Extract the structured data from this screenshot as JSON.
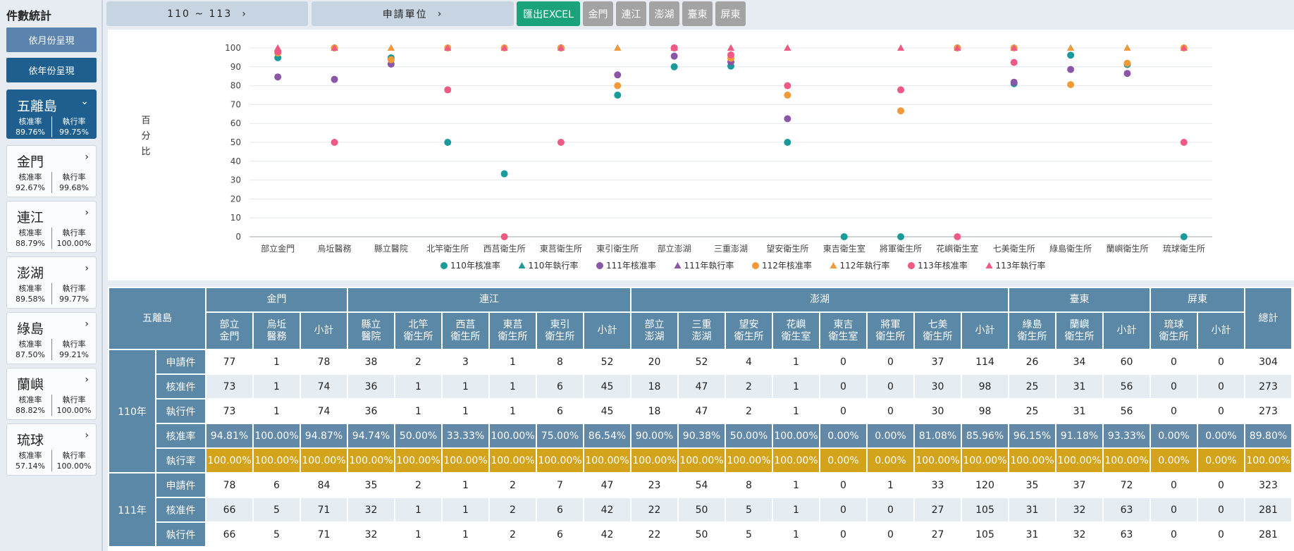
{
  "sidebar": {
    "title": "件數統計",
    "by_month": "依月份呈現",
    "by_year": "依年份呈現",
    "cards": [
      {
        "name": "五離島",
        "label1": "核准率",
        "value1": "89.76%",
        "label2": "執行率",
        "value2": "99.75%",
        "active": true,
        "chev": "⌄"
      },
      {
        "name": "金門",
        "label1": "核准率",
        "value1": "92.67%",
        "label2": "執行率",
        "value2": "99.68%",
        "chev": "›"
      },
      {
        "name": "連江",
        "label1": "核准率",
        "value1": "88.79%",
        "label2": "執行率",
        "value2": "100.00%",
        "chev": "›"
      },
      {
        "name": "澎湖",
        "label1": "核准率",
        "value1": "89.58%",
        "label2": "執行率",
        "value2": "99.77%",
        "chev": "›"
      },
      {
        "name": "綠島",
        "label1": "核准率",
        "value1": "87.50%",
        "label2": "執行率",
        "value2": "99.21%",
        "chev": "›"
      },
      {
        "name": "蘭嶼",
        "label1": "核准率",
        "value1": "88.82%",
        "label2": "執行率",
        "value2": "100.00%",
        "chev": "›"
      },
      {
        "name": "琉球",
        "label1": "核准率",
        "value1": "57.14%",
        "label2": "執行率",
        "value2": "100.00%",
        "chev": "›"
      }
    ]
  },
  "toolbar": {
    "year_range": "110 ~ 113",
    "year_chev": "›",
    "unit": "申請單位",
    "unit_chev": "›",
    "export": "匯出EXCEL",
    "filters": [
      "金門",
      "連江",
      "澎湖",
      "臺東",
      "屏東"
    ],
    "export_color": "#1aa37a",
    "filter_color": "#a3a3a3"
  },
  "chart_data": {
    "type": "scatter",
    "ylabel": "百分比",
    "ylim": [
      0,
      100
    ],
    "yticks": [
      0,
      10,
      20,
      30,
      40,
      50,
      60,
      70,
      80,
      90,
      100
    ],
    "grid": true,
    "legend_position": "bottom",
    "categories": [
      "部立金門",
      "烏坵醫務",
      "縣立醫院",
      "北竿衛生所",
      "西莒衛生所",
      "東莒衛生所",
      "東引衛生所",
      "部立澎湖",
      "三重澎湖",
      "望安衛生所",
      "東吉衛生室",
      "將軍衛生所",
      "花嶼衛生室",
      "七美衛生所",
      "綠島衛生所",
      "蘭嶼衛生所",
      "琉球衛生所"
    ],
    "series": [
      {
        "name": "110年核准率",
        "shape": "circle",
        "color": "#1a9a9a",
        "values": [
          94.81,
          100,
          94.74,
          50,
          33.33,
          100,
          75,
          90,
          90.38,
          50,
          0,
          0,
          100,
          81.08,
          96.15,
          91.18,
          0
        ]
      },
      {
        "name": "110年執行率",
        "shape": "triangle",
        "color": "#1a9a9a",
        "values": [
          100,
          100,
          100,
          100,
          100,
          100,
          100,
          100,
          100,
          100,
          null,
          null,
          100,
          100,
          100,
          100,
          null
        ]
      },
      {
        "name": "111年核准率",
        "shape": "circle",
        "color": "#8a57a8",
        "values": [
          84.62,
          83.33,
          91.43,
          null,
          null,
          100,
          85.71,
          95.65,
          92.59,
          62.5,
          null,
          null,
          null,
          81.82,
          88.57,
          86.49,
          null
        ]
      },
      {
        "name": "111年執行率",
        "shape": "triangle",
        "color": "#8a57a8",
        "values": [
          100,
          100,
          100,
          null,
          null,
          100,
          100,
          100,
          100,
          100,
          null,
          null,
          null,
          100,
          100,
          100,
          null
        ]
      },
      {
        "name": "112年核准率",
        "shape": "circle",
        "color": "#f09a3a",
        "values": [
          97.3,
          100,
          93.75,
          100,
          100,
          100,
          80,
          100,
          94.55,
          75,
          null,
          66.67,
          100,
          100,
          80.56,
          91.89,
          100
        ]
      },
      {
        "name": "112年執行率",
        "shape": "triangle",
        "color": "#f09a3a",
        "values": [
          100,
          100,
          100,
          100,
          100,
          100,
          100,
          100,
          100,
          100,
          null,
          100,
          100,
          100,
          100,
          100,
          100
        ]
      },
      {
        "name": "113年核准率",
        "shape": "circle",
        "color": "#ee5a84",
        "values": [
          98,
          50,
          null,
          77.78,
          0,
          50,
          null,
          100,
          96.3,
          80,
          null,
          77.78,
          0,
          92.31,
          null,
          null,
          50
        ]
      },
      {
        "name": "113年執行率",
        "shape": "triangle",
        "color": "#ee5a84",
        "values": [
          100,
          100,
          null,
          100,
          100,
          100,
          null,
          100,
          100,
          100,
          null,
          100,
          100,
          100,
          null,
          null,
          100
        ]
      }
    ]
  },
  "table": {
    "corner": "五離島",
    "groups": [
      {
        "name": "金門",
        "span": 3
      },
      {
        "name": "連江",
        "span": 6
      },
      {
        "name": "澎湖",
        "span": 8
      },
      {
        "name": "臺東",
        "span": 3
      },
      {
        "name": "屏東",
        "span": 2
      }
    ],
    "total": "總計",
    "cols": [
      "部立\n金門",
      "烏坵\n醫務",
      "小計",
      "縣立\n醫院",
      "北竿\n衛生所",
      "西莒\n衛生所",
      "東莒\n衛生所",
      "東引\n衛生所",
      "小計",
      "部立\n澎湖",
      "三重\n澎湖",
      "望安\n衛生所",
      "花嶼\n衛生室",
      "東吉\n衛生室",
      "將軍\n衛生所",
      "七美\n衛生所",
      "小計",
      "綠島\n衛生所",
      "蘭嶼\n衛生所",
      "小計",
      "琉球\n衛生所",
      "小計"
    ],
    "years": [
      {
        "label": "110年",
        "rows": [
          {
            "label": "申請件",
            "cls": "r-app",
            "values": [
              "77",
              "1",
              "78",
              "38",
              "2",
              "3",
              "1",
              "8",
              "52",
              "20",
              "52",
              "4",
              "1",
              "0",
              "0",
              "37",
              "114",
              "26",
              "34",
              "60",
              "0",
              "0",
              "304"
            ]
          },
          {
            "label": "核准件",
            "cls": "r-appr",
            "values": [
              "73",
              "1",
              "74",
              "36",
              "1",
              "1",
              "1",
              "6",
              "45",
              "18",
              "47",
              "2",
              "1",
              "0",
              "0",
              "30",
              "98",
              "25",
              "31",
              "56",
              "0",
              "0",
              "273"
            ]
          },
          {
            "label": "執行件",
            "cls": "r-exec",
            "values": [
              "73",
              "1",
              "74",
              "36",
              "1",
              "1",
              "1",
              "6",
              "45",
              "18",
              "47",
              "2",
              "1",
              "0",
              "0",
              "30",
              "98",
              "25",
              "31",
              "56",
              "0",
              "0",
              "273"
            ]
          },
          {
            "label": "核准率",
            "cls": "r-rate",
            "values": [
              "94.81%",
              "100.00%",
              "94.87%",
              "94.74%",
              "50.00%",
              "33.33%",
              "100.00%",
              "75.00%",
              "86.54%",
              "90.00%",
              "90.38%",
              "50.00%",
              "100.00%",
              "0.00%",
              "0.00%",
              "81.08%",
              "85.96%",
              "96.15%",
              "91.18%",
              "93.33%",
              "0.00%",
              "0.00%",
              "89.80%"
            ]
          },
          {
            "label": "執行率",
            "cls": "r-erate",
            "values": [
              "100.00%",
              "100.00%",
              "100.00%",
              "100.00%",
              "100.00%",
              "100.00%",
              "100.00%",
              "100.00%",
              "100.00%",
              "100.00%",
              "100.00%",
              "100.00%",
              "100.00%",
              "0.00%",
              "0.00%",
              "100.00%",
              "100.00%",
              "100.00%",
              "100.00%",
              "100.00%",
              "0.00%",
              "0.00%",
              "100.00%"
            ]
          }
        ]
      },
      {
        "label": "111年",
        "rows": [
          {
            "label": "申請件",
            "cls": "r-app",
            "values": [
              "78",
              "6",
              "84",
              "35",
              "2",
              "1",
              "2",
              "7",
              "47",
              "23",
              "54",
              "8",
              "1",
              "0",
              "1",
              "33",
              "120",
              "35",
              "37",
              "72",
              "0",
              "0",
              "323"
            ]
          },
          {
            "label": "核准件",
            "cls": "r-appr",
            "values": [
              "66",
              "5",
              "71",
              "32",
              "1",
              "1",
              "2",
              "6",
              "42",
              "22",
              "50",
              "5",
              "1",
              "0",
              "0",
              "27",
              "105",
              "31",
              "32",
              "63",
              "0",
              "0",
              "281"
            ]
          },
          {
            "label": "執行件",
            "cls": "r-exec",
            "values": [
              "66",
              "5",
              "71",
              "32",
              "1",
              "1",
              "2",
              "6",
              "42",
              "22",
              "50",
              "5",
              "1",
              "0",
              "0",
              "27",
              "105",
              "31",
              "32",
              "63",
              "0",
              "0",
              "281"
            ]
          }
        ]
      }
    ]
  }
}
